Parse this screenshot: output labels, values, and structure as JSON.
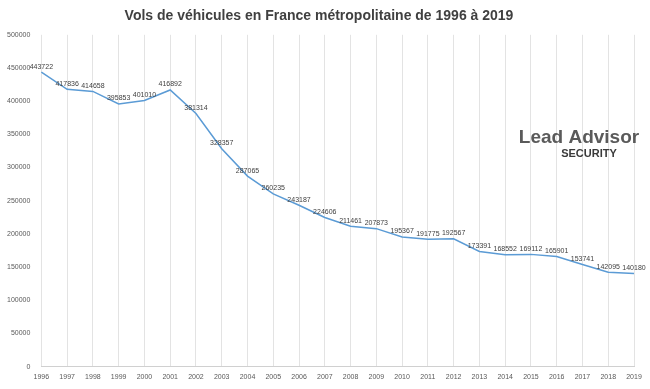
{
  "chart_data": {
    "type": "line",
    "title": "Vols de véhicules en France métropolitaine de 1996 à 2019",
    "categories": [
      "1996",
      "1997",
      "1998",
      "1999",
      "2000",
      "2001",
      "2002",
      "2003",
      "2004",
      "2005",
      "2006",
      "2007",
      "2008",
      "2009",
      "2010",
      "2011",
      "2012",
      "2013",
      "2014",
      "2015",
      "2016",
      "2017",
      "2018",
      "2019"
    ],
    "values": [
      443722,
      417836,
      414658,
      395853,
      401010,
      416892,
      381314,
      328357,
      287065,
      260235,
      243187,
      224606,
      211461,
      207873,
      195367,
      191775,
      192567,
      173391,
      168552,
      169112,
      165901,
      153741,
      142095,
      140180
    ],
    "color": "#5b9bd5",
    "ylim": [
      0,
      500000
    ],
    "yticks": [
      0,
      50000,
      100000,
      150000,
      200000,
      250000,
      300000,
      350000,
      400000,
      450000,
      500000
    ],
    "grid": "x",
    "data_labels": true,
    "annotations": [
      "Lead Advisor",
      "SECURITY"
    ]
  }
}
